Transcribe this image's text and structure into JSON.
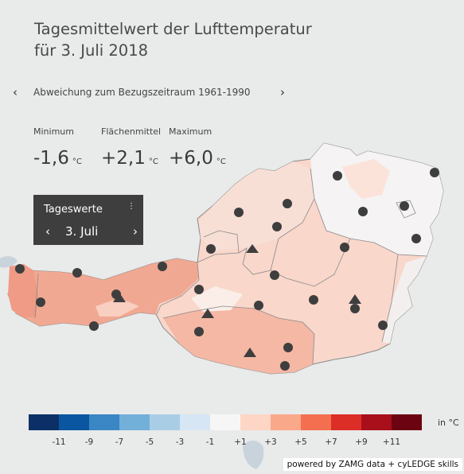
{
  "title": {
    "line1": "Tagesmittelwert der Lufttemperatur",
    "line2": "für 3. Juli 2018"
  },
  "subtitle": {
    "text": "Abweichung zum Bezugszeitraum 1961-1990",
    "prev_icon": "chevron-left-icon",
    "next_icon": "chevron-right-icon"
  },
  "stats": {
    "minimum": {
      "label": "Minimum",
      "value": "-1,6",
      "unit": "°C"
    },
    "mean": {
      "label": "Flächenmittel",
      "value": "+2,1",
      "unit": "°C"
    },
    "maximum": {
      "label": "Maximum",
      "value": "+6,0",
      "unit": "°C"
    }
  },
  "day_selector": {
    "title": "Tageswerte",
    "menu_icon": "vertical-dots-icon",
    "prev_icon": "chevron-left-icon",
    "next_icon": "chevron-right-icon",
    "date": "3. Juli"
  },
  "legend": {
    "colors": [
      "#0b2f66",
      "#0a56a0",
      "#3b86c4",
      "#72afd9",
      "#aacde6",
      "#d6e6f4",
      "#f6f6f6",
      "#fdd6c6",
      "#f9a88a",
      "#f46f4f",
      "#dc2d26",
      "#a80f1b",
      "#6b0410"
    ],
    "ticks": [
      "-11",
      "-9",
      "-7",
      "-5",
      "-3",
      "-1",
      "+1",
      "+3",
      "+5",
      "+7",
      "+9",
      "+11"
    ],
    "unit": "in °C"
  },
  "credit": "powered by ZAMG data + cyLEDGE skills"
}
